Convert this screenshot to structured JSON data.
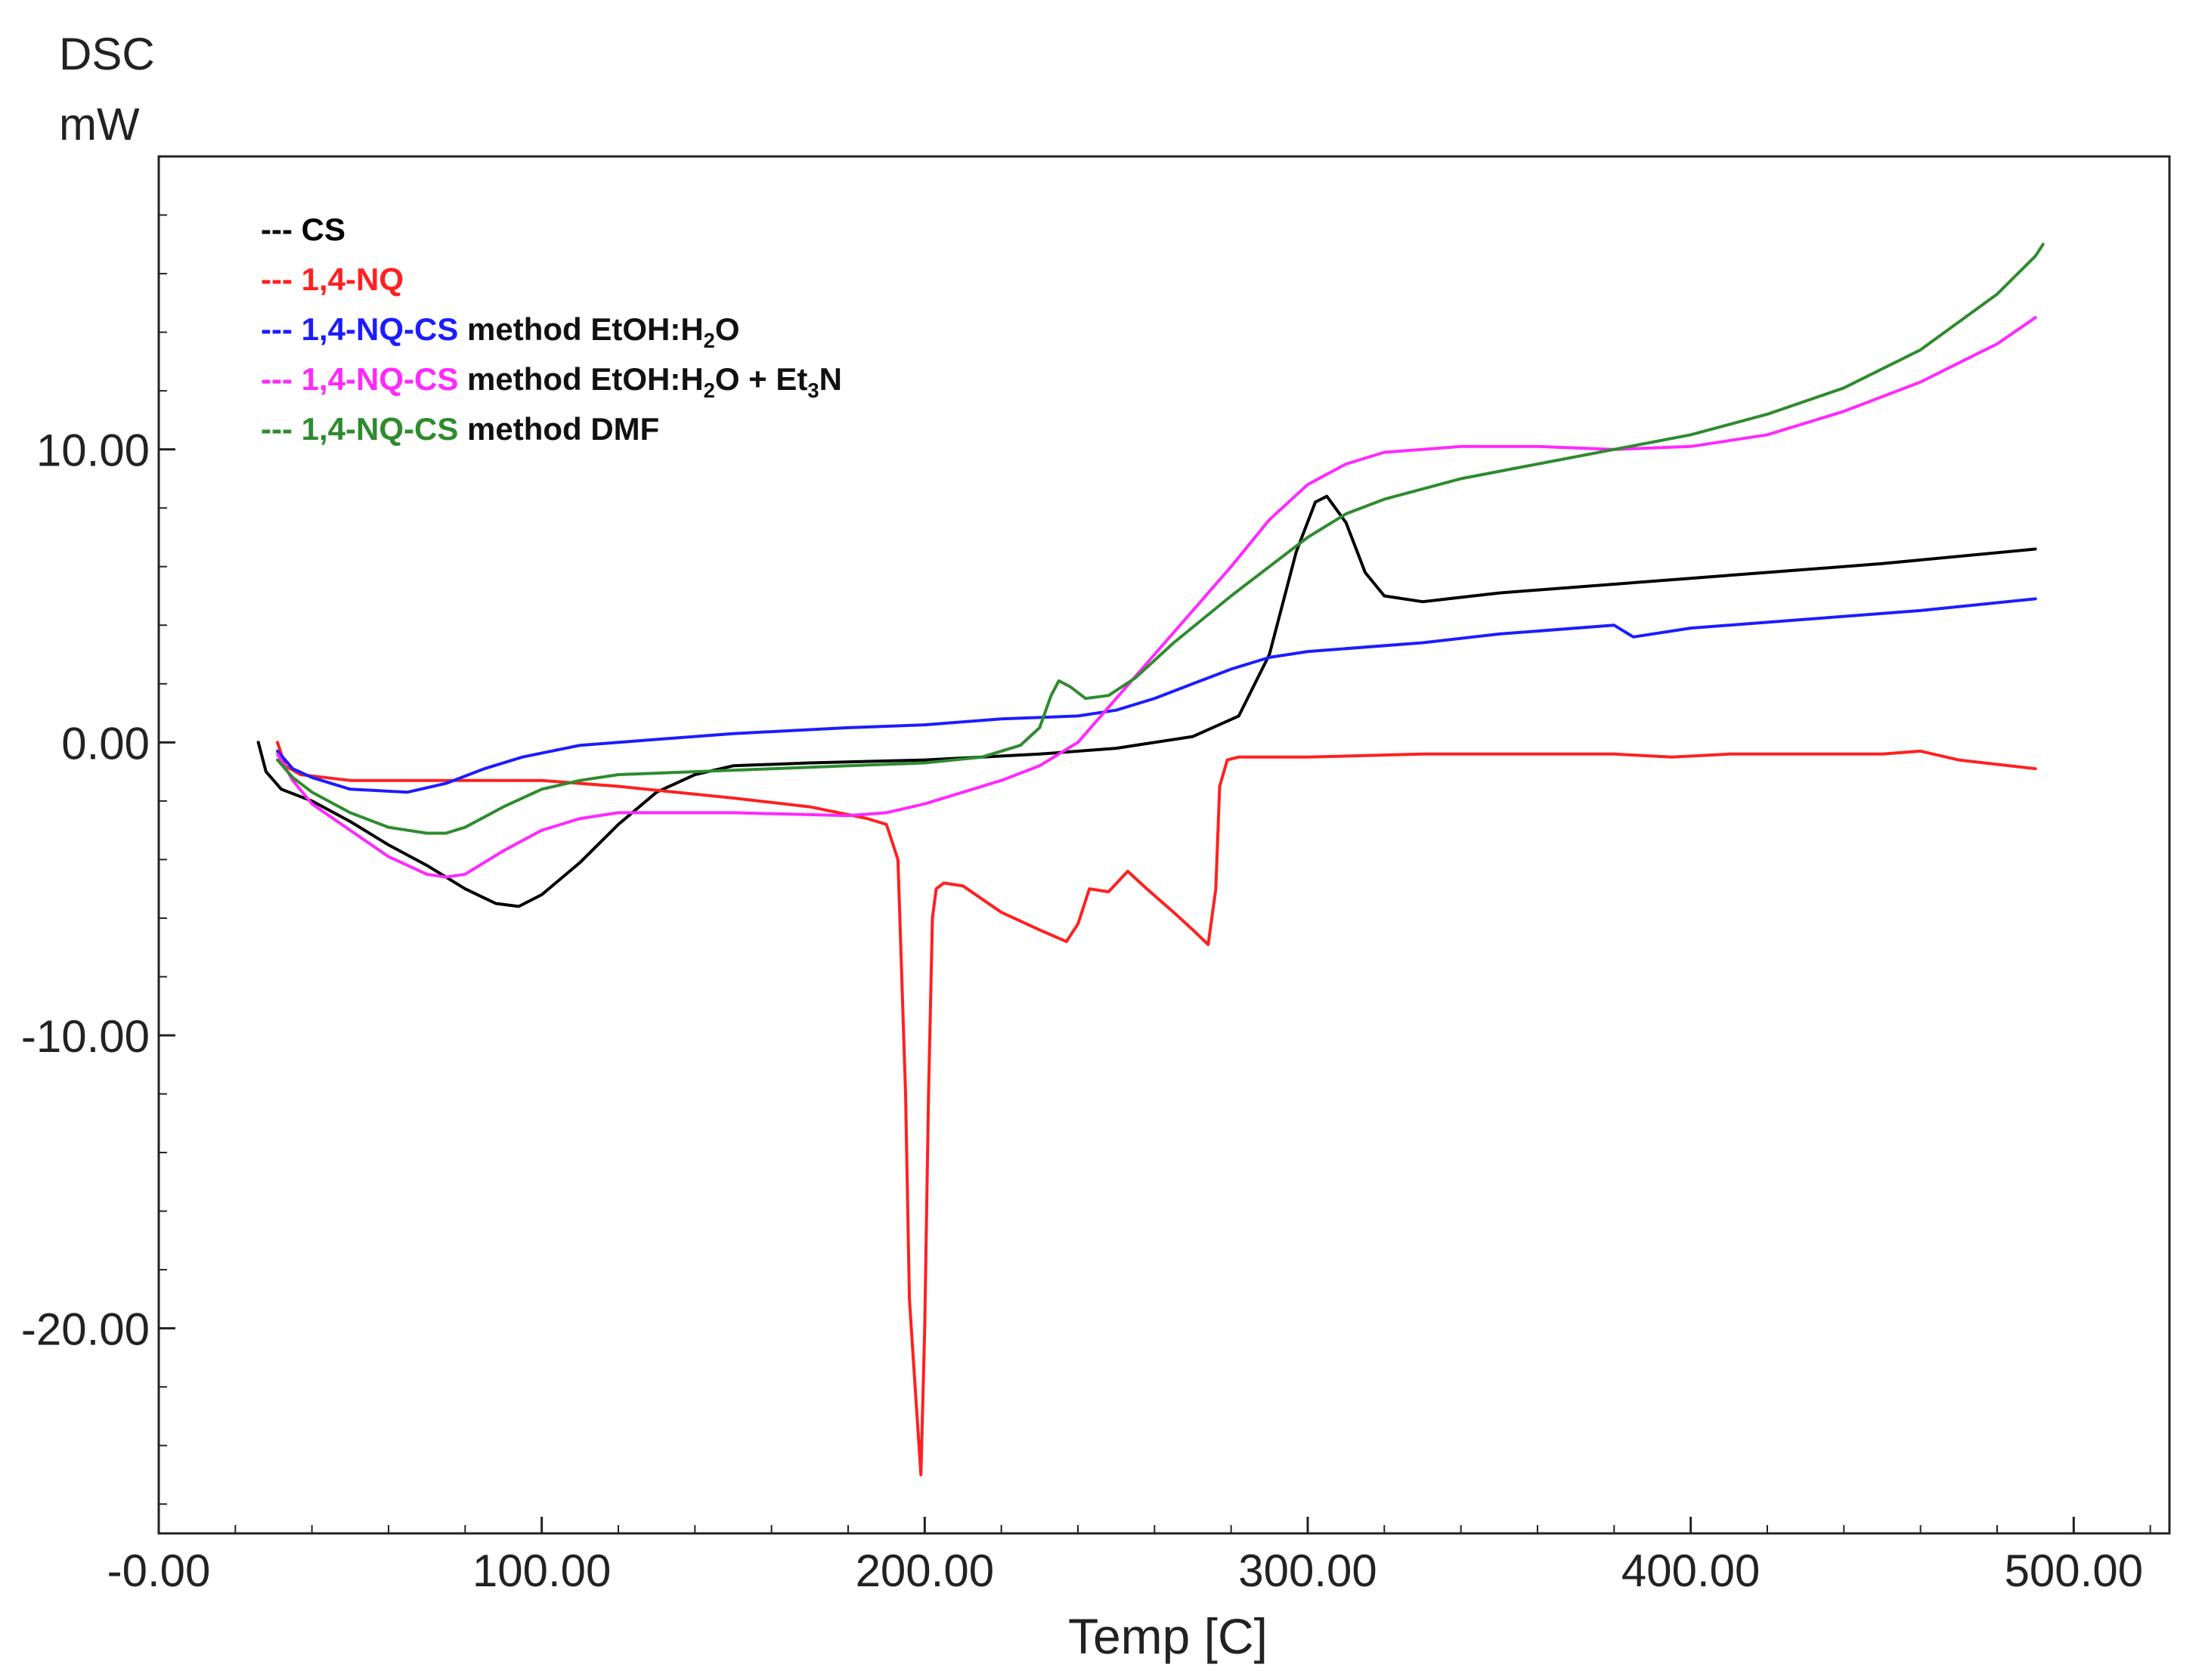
{
  "chart_data": {
    "type": "line",
    "title": "",
    "ylabel_line1": "DSC",
    "ylabel_line2": "mW",
    "xlabel": "Temp  [C]",
    "xlim": [
      0,
      525
    ],
    "ylim": [
      -27,
      20
    ],
    "x_ticks": [
      0,
      100,
      200,
      300,
      400,
      500
    ],
    "x_tick_labels": [
      "-0.00",
      "100.00",
      "200.00",
      "300.00",
      "400.00",
      "500.00"
    ],
    "y_ticks": [
      10,
      0,
      -10,
      -20
    ],
    "y_tick_labels": [
      "10.00",
      "0.00",
      "-10.00",
      "-20.00"
    ],
    "legend_position": "top-left",
    "legend": [
      {
        "dash": "---",
        "bold": "CS",
        "rest": "",
        "color": "#000000"
      },
      {
        "dash": "---",
        "bold": "1,4-NQ",
        "rest": "",
        "color": "#ff2020"
      },
      {
        "dash": "---",
        "bold": "1,4-NQ-CS",
        "rest": "method EtOH:H",
        "sub1": "2",
        "rest2": "O",
        "rest3": "",
        "sub2": "",
        "rest4": "",
        "color": "#1c1cff"
      },
      {
        "dash": "---",
        "bold": "1,4-NQ-CS",
        "rest": "method EtOH:H",
        "sub1": "2",
        "rest2": "O + Et",
        "sub2": "3",
        "rest4": "N",
        "color": "#ff28ff"
      },
      {
        "dash": "---",
        "bold": "1,4-NQ-CS",
        "rest": "method DMF",
        "color": "#2e8b2e"
      }
    ],
    "series": [
      {
        "name": "CS",
        "color": "#000000",
        "points": [
          [
            26,
            0
          ],
          [
            28,
            -1
          ],
          [
            32,
            -1.6
          ],
          [
            40,
            -2
          ],
          [
            50,
            -2.7
          ],
          [
            60,
            -3.5
          ],
          [
            70,
            -4.2
          ],
          [
            80,
            -5
          ],
          [
            88,
            -5.5
          ],
          [
            94,
            -5.6
          ],
          [
            100,
            -5.2
          ],
          [
            110,
            -4.1
          ],
          [
            120,
            -2.8
          ],
          [
            130,
            -1.7
          ],
          [
            140,
            -1.1
          ],
          [
            150,
            -0.8
          ],
          [
            170,
            -0.7
          ],
          [
            200,
            -0.6
          ],
          [
            230,
            -0.4
          ],
          [
            250,
            -0.2
          ],
          [
            270,
            0.2
          ],
          [
            282,
            0.9
          ],
          [
            290,
            3
          ],
          [
            297,
            6.5
          ],
          [
            302,
            8.2
          ],
          [
            305,
            8.4
          ],
          [
            310,
            7.5
          ],
          [
            315,
            5.8
          ],
          [
            320,
            5
          ],
          [
            330,
            4.8
          ],
          [
            350,
            5.1
          ],
          [
            400,
            5.6
          ],
          [
            450,
            6.1
          ],
          [
            490,
            6.6
          ]
        ]
      },
      {
        "name": "1,4-NQ",
        "color": "#ff2020",
        "points": [
          [
            31,
            0
          ],
          [
            33,
            -0.8
          ],
          [
            37,
            -1.1
          ],
          [
            50,
            -1.3
          ],
          [
            80,
            -1.3
          ],
          [
            100,
            -1.3
          ],
          [
            120,
            -1.5
          ],
          [
            150,
            -1.9
          ],
          [
            170,
            -2.2
          ],
          [
            185,
            -2.6
          ],
          [
            190,
            -2.8
          ],
          [
            193,
            -4
          ],
          [
            195,
            -12
          ],
          [
            196,
            -19
          ],
          [
            197,
            -21
          ],
          [
            198,
            -23
          ],
          [
            199,
            -25
          ],
          [
            200,
            -20
          ],
          [
            201,
            -12
          ],
          [
            202,
            -6
          ],
          [
            203,
            -5
          ],
          [
            205,
            -4.8
          ],
          [
            210,
            -4.9
          ],
          [
            220,
            -5.8
          ],
          [
            230,
            -6.4
          ],
          [
            237,
            -6.8
          ],
          [
            240,
            -6.2
          ],
          [
            243,
            -5
          ],
          [
            248,
            -5.1
          ],
          [
            253,
            -4.4
          ],
          [
            258,
            -5
          ],
          [
            265,
            -5.8
          ],
          [
            270,
            -6.4
          ],
          [
            274,
            -6.9
          ],
          [
            276,
            -5
          ],
          [
            277,
            -1.5
          ],
          [
            279,
            -0.6
          ],
          [
            282,
            -0.5
          ],
          [
            300,
            -0.5
          ],
          [
            330,
            -0.4
          ],
          [
            380,
            -0.4
          ],
          [
            395,
            -0.5
          ],
          [
            410,
            -0.4
          ],
          [
            450,
            -0.4
          ],
          [
            460,
            -0.3
          ],
          [
            470,
            -0.6
          ],
          [
            490,
            -0.9
          ]
        ]
      },
      {
        "name": "1,4-NQ-CS method EtOH:H2O",
        "color": "#1c1cff",
        "points": [
          [
            31,
            -0.3
          ],
          [
            35,
            -0.9
          ],
          [
            40,
            -1.2
          ],
          [
            50,
            -1.6
          ],
          [
            65,
            -1.7
          ],
          [
            75,
            -1.4
          ],
          [
            85,
            -0.9
          ],
          [
            95,
            -0.5
          ],
          [
            110,
            -0.1
          ],
          [
            130,
            0.1
          ],
          [
            150,
            0.3
          ],
          [
            180,
            0.5
          ],
          [
            200,
            0.6
          ],
          [
            220,
            0.8
          ],
          [
            240,
            0.9
          ],
          [
            250,
            1.1
          ],
          [
            260,
            1.5
          ],
          [
            270,
            2
          ],
          [
            280,
            2.5
          ],
          [
            290,
            2.9
          ],
          [
            300,
            3.1
          ],
          [
            330,
            3.4
          ],
          [
            350,
            3.7
          ],
          [
            380,
            4
          ],
          [
            385,
            3.6
          ],
          [
            400,
            3.9
          ],
          [
            430,
            4.2
          ],
          [
            460,
            4.5
          ],
          [
            490,
            4.9
          ]
        ]
      },
      {
        "name": "1,4-NQ-CS method EtOH:H2O + Et3N",
        "color": "#ff28ff",
        "points": [
          [
            31,
            -0.4
          ],
          [
            35,
            -1.3
          ],
          [
            40,
            -2.1
          ],
          [
            50,
            -3
          ],
          [
            60,
            -3.9
          ],
          [
            70,
            -4.5
          ],
          [
            75,
            -4.6
          ],
          [
            80,
            -4.5
          ],
          [
            90,
            -3.7
          ],
          [
            100,
            -3
          ],
          [
            110,
            -2.6
          ],
          [
            120,
            -2.4
          ],
          [
            150,
            -2.4
          ],
          [
            180,
            -2.5
          ],
          [
            190,
            -2.4
          ],
          [
            200,
            -2.1
          ],
          [
            210,
            -1.7
          ],
          [
            220,
            -1.3
          ],
          [
            230,
            -0.8
          ],
          [
            240,
            0
          ],
          [
            250,
            1.5
          ],
          [
            260,
            3
          ],
          [
            270,
            4.5
          ],
          [
            280,
            6
          ],
          [
            290,
            7.6
          ],
          [
            300,
            8.8
          ],
          [
            310,
            9.5
          ],
          [
            320,
            9.9
          ],
          [
            340,
            10.1
          ],
          [
            360,
            10.1
          ],
          [
            380,
            10
          ],
          [
            400,
            10.1
          ],
          [
            420,
            10.5
          ],
          [
            440,
            11.3
          ],
          [
            460,
            12.3
          ],
          [
            480,
            13.6
          ],
          [
            490,
            14.5
          ]
        ]
      },
      {
        "name": "1,4-NQ-CS method DMF",
        "color": "#2e8b2e",
        "points": [
          [
            31,
            -0.6
          ],
          [
            35,
            -1.2
          ],
          [
            40,
            -1.7
          ],
          [
            50,
            -2.4
          ],
          [
            60,
            -2.9
          ],
          [
            70,
            -3.1
          ],
          [
            75,
            -3.1
          ],
          [
            80,
            -2.9
          ],
          [
            90,
            -2.2
          ],
          [
            100,
            -1.6
          ],
          [
            110,
            -1.3
          ],
          [
            120,
            -1.1
          ],
          [
            140,
            -1
          ],
          [
            160,
            -0.9
          ],
          [
            180,
            -0.8
          ],
          [
            200,
            -0.7
          ],
          [
            215,
            -0.5
          ],
          [
            225,
            -0.1
          ],
          [
            230,
            0.5
          ],
          [
            233,
            1.6
          ],
          [
            235,
            2.1
          ],
          [
            238,
            1.9
          ],
          [
            242,
            1.5
          ],
          [
            248,
            1.6
          ],
          [
            255,
            2.2
          ],
          [
            265,
            3.4
          ],
          [
            280,
            5
          ],
          [
            290,
            6
          ],
          [
            300,
            7
          ],
          [
            310,
            7.8
          ],
          [
            320,
            8.3
          ],
          [
            340,
            9
          ],
          [
            360,
            9.5
          ],
          [
            380,
            10
          ],
          [
            400,
            10.5
          ],
          [
            420,
            11.2
          ],
          [
            440,
            12.1
          ],
          [
            460,
            13.4
          ],
          [
            480,
            15.3
          ],
          [
            490,
            16.6
          ],
          [
            492,
            17
          ]
        ]
      }
    ]
  }
}
